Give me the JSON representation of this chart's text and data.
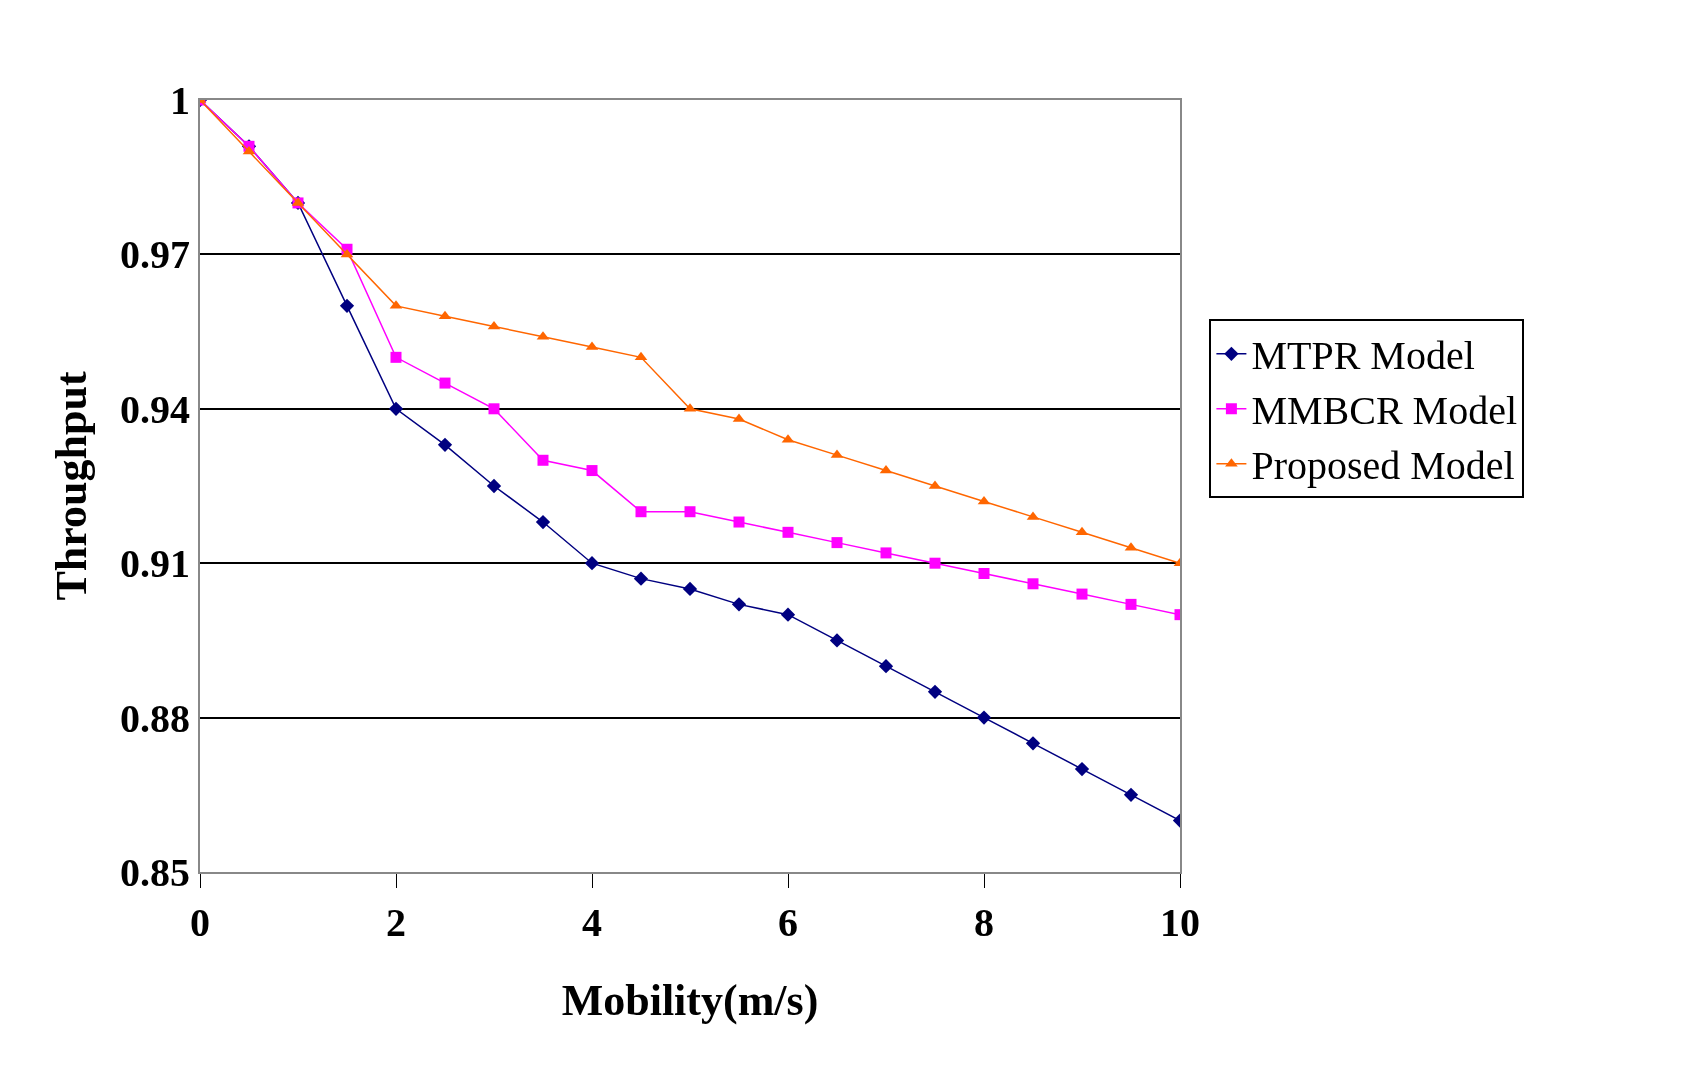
{
  "chart_data": {
    "type": "line",
    "xlabel": "Mobility(m/s)",
    "ylabel": "Throughput",
    "x": [
      0,
      0.5,
      1,
      1.5,
      2,
      2.5,
      3,
      3.5,
      4,
      4.5,
      5,
      5.5,
      6,
      6.5,
      7,
      7.5,
      8,
      8.5,
      9,
      9.5,
      10
    ],
    "series": [
      {
        "name": "MTPR Model",
        "color": "#000080",
        "marker": "diamond",
        "values": [
          1,
          0.991,
          0.98,
          0.96,
          0.94,
          0.933,
          0.925,
          0.918,
          0.91,
          0.907,
          0.905,
          0.902,
          0.9,
          0.895,
          0.89,
          0.885,
          0.88,
          0.875,
          0.87,
          0.865,
          0.86
        ]
      },
      {
        "name": "MMBCR Model",
        "color": "#ff00ff",
        "marker": "square",
        "values": [
          1,
          0.991,
          0.98,
          0.971,
          0.95,
          0.945,
          0.94,
          0.93,
          0.928,
          0.92,
          0.92,
          0.918,
          0.916,
          0.914,
          0.912,
          0.91,
          0.908,
          0.906,
          0.904,
          0.902,
          0.9
        ]
      },
      {
        "name": "Proposed Model",
        "color": "#ff6600",
        "marker": "triangle",
        "values": [
          1,
          0.99,
          0.98,
          0.97,
          0.96,
          0.958,
          0.956,
          0.954,
          0.952,
          0.95,
          0.94,
          0.938,
          0.934,
          0.931,
          0.928,
          0.925,
          0.922,
          0.919,
          0.916,
          0.913,
          0.91
        ]
      }
    ],
    "xlim": [
      0,
      10
    ],
    "xticks": [
      0,
      2,
      4,
      6,
      8,
      10
    ],
    "ylim": [
      0.85,
      1
    ],
    "yticks": [
      0.85,
      0.88,
      0.91,
      0.94,
      0.97,
      1
    ],
    "grid": "y",
    "legend": "right",
    "line_style": "solid"
  }
}
